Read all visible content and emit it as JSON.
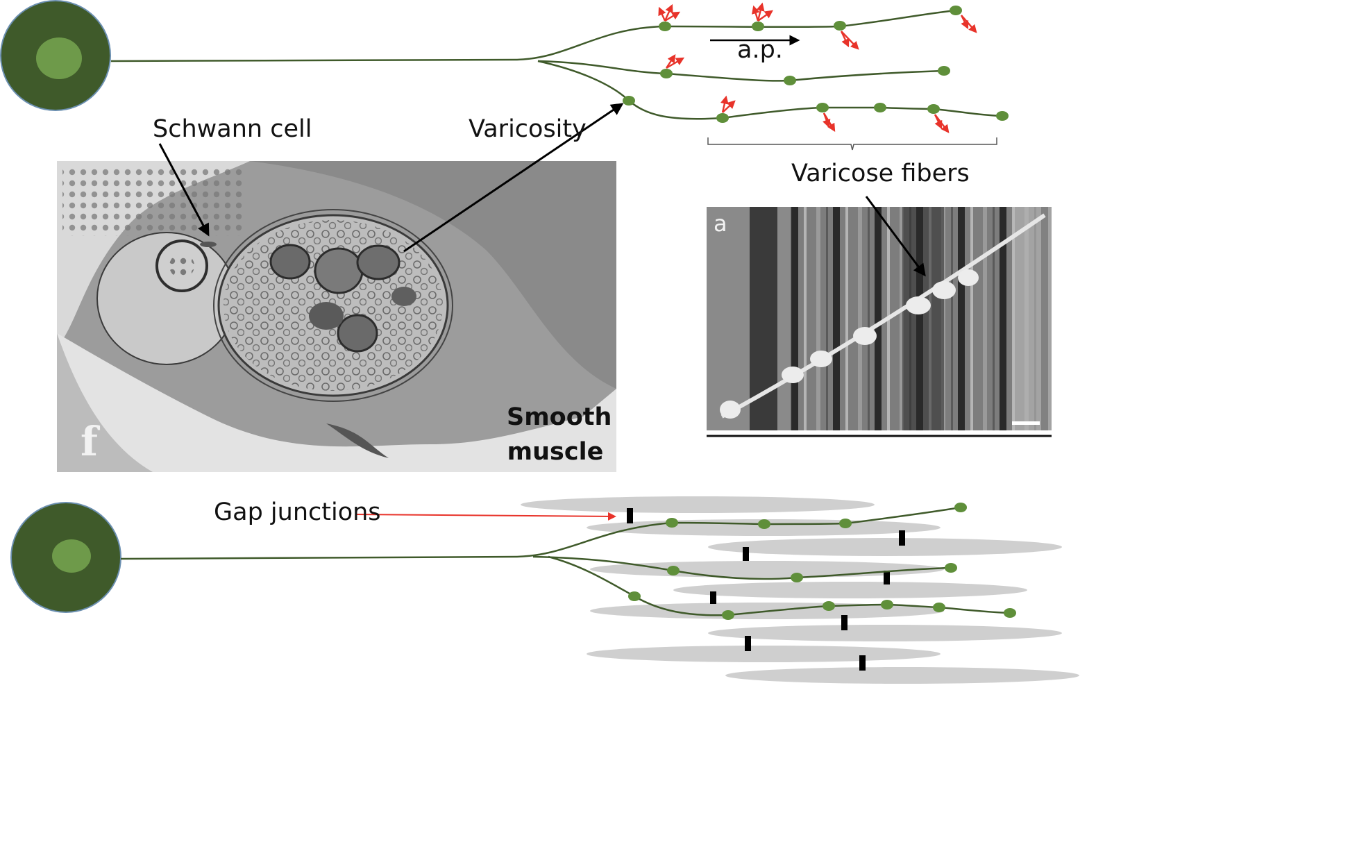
{
  "labels": {
    "schwann_cell": "Schwann cell",
    "varicosity": "Varicosity",
    "action_potential": "a.p.",
    "varicose_fibers": "Varicose fibers",
    "smooth_muscle_line1": "Smooth",
    "smooth_muscle_line2": "muscle",
    "gap_junctions": "Gap junctions",
    "em_panel_letter": "f",
    "sem_panel_letter": "a"
  },
  "colors": {
    "neuron_body": "#3f5a2a",
    "nucleus": "#6e9a4a",
    "fiber": "#3f5a2a",
    "varicosity": "#5f8f3a",
    "release_arrow": "#e8332a",
    "gap_junction_arrow": "#e8332a",
    "muscle_cell": "#cfcfcf",
    "gap_junction": "#000000"
  }
}
